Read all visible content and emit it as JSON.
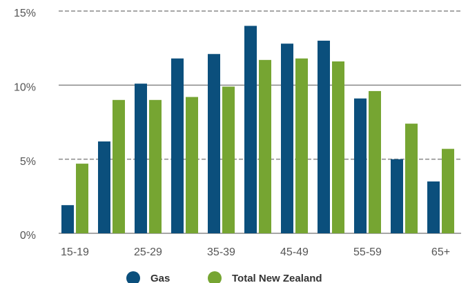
{
  "chart_data": {
    "type": "bar",
    "categories": [
      "15-19",
      null,
      "25-29",
      null,
      "35-39",
      null,
      "45-49",
      null,
      "55-59",
      null,
      "65+"
    ],
    "series": [
      {
        "name": "Gas",
        "color": "#0b4f7c",
        "values": [
          1.9,
          6.2,
          10.1,
          11.8,
          12.1,
          14.0,
          12.8,
          13.0,
          9.1,
          5.0,
          3.5
        ]
      },
      {
        "name": "Total New Zealand",
        "color": "#76a532",
        "values": [
          4.7,
          9.0,
          9.0,
          9.2,
          9.9,
          11.7,
          11.8,
          11.6,
          9.6,
          7.4,
          5.7
        ]
      }
    ],
    "ylim": [
      0,
      15
    ],
    "yticks": [
      {
        "value": 0,
        "label": "0%"
      },
      {
        "value": 5,
        "label": "5%"
      },
      {
        "value": 10,
        "label": "10%"
      },
      {
        "value": 15,
        "label": "15%"
      }
    ],
    "grid": true,
    "legend": "bottom"
  }
}
